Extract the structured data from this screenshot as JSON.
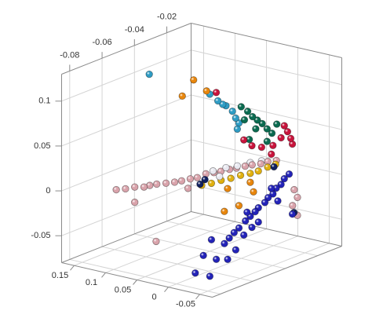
{
  "chart_data": {
    "type": "scatter3d",
    "xlim": [
      -0.085,
      -0.005
    ],
    "ylim": [
      -0.07,
      0.17
    ],
    "zlim": [
      -0.08,
      0.13
    ],
    "xticks": [
      -0.08,
      -0.06,
      -0.04,
      -0.02
    ],
    "yticks": [
      -0.05,
      0,
      0.05,
      0.1,
      0.15
    ],
    "zticks": [
      -0.05,
      0,
      0.05,
      0.1
    ],
    "grid": true,
    "series": [
      {
        "color": "#2323b8",
        "x": [
          -0.022,
          -0.025,
          -0.027,
          -0.03,
          -0.032,
          -0.035,
          -0.037,
          -0.041,
          -0.043,
          -0.046,
          -0.049,
          -0.053,
          -0.056,
          -0.059,
          -0.062,
          -0.055,
          -0.05,
          -0.045,
          -0.041,
          -0.07,
          -0.067,
          -0.06,
          -0.075,
          -0.08,
          -0.071,
          -0.048,
          -0.033,
          -0.029,
          -0.02
        ],
        "y": [
          -0.03,
          -0.03,
          -0.03,
          -0.03,
          -0.03,
          -0.03,
          -0.03,
          -0.03,
          -0.03,
          -0.03,
          -0.03,
          -0.03,
          -0.03,
          -0.03,
          -0.03,
          -0.03,
          -0.03,
          -0.03,
          -0.03,
          -0.03,
          -0.03,
          -0.03,
          -0.03,
          -0.03,
          -0.03,
          -0.03,
          -0.03,
          -0.03,
          -0.03
        ],
        "z": [
          0.006,
          0.003,
          -0.002,
          -0.004,
          -0.009,
          -0.011,
          -0.015,
          -0.018,
          -0.021,
          -0.024,
          -0.027,
          -0.032,
          -0.035,
          -0.039,
          -0.043,
          -0.055,
          -0.042,
          -0.037,
          -0.034,
          -0.033,
          -0.057,
          -0.062,
          -0.047,
          -0.063,
          -0.073,
          -0.018,
          -0.002,
          -0.019,
          -0.04
        ]
      },
      {
        "color": "#d9a3ab",
        "x": [
          -0.059,
          -0.056,
          -0.053,
          -0.05,
          -0.048,
          -0.046,
          -0.043,
          -0.04,
          -0.038,
          -0.035,
          -0.033,
          -0.03,
          -0.027,
          -0.025,
          -0.022,
          -0.02,
          -0.017,
          -0.015,
          -0.012,
          -0.01,
          -0.007,
          -0.015,
          -0.013,
          -0.016,
          -0.013,
          -0.046,
          -0.053,
          -0.036
        ],
        "y": [
          0.15,
          0.143,
          0.136,
          0.129,
          0.125,
          0.119,
          0.112,
          0.106,
          0.1,
          0.094,
          0.088,
          0.082,
          0.077,
          0.071,
          0.065,
          0.059,
          0.053,
          0.047,
          0.041,
          0.035,
          0.029,
          -0.02,
          -0.02,
          -0.02,
          -0.02,
          0.12,
          0.136,
          0.095
        ],
        "z": [
          -0.014,
          -0.014,
          -0.013,
          -0.014,
          -0.013,
          -0.012,
          -0.012,
          -0.012,
          -0.011,
          -0.01,
          -0.009,
          -0.006,
          -0.006,
          -0.005,
          -0.004,
          -0.003,
          -0.002,
          -0.001,
          -0.001,
          0.001,
          0.001,
          -0.018,
          -0.028,
          -0.035,
          -0.048,
          -0.076,
          -0.03,
          -0.02
        ]
      },
      {
        "color": "#e8860c",
        "x": [
          -0.057,
          -0.05,
          -0.042,
          -0.029,
          -0.031,
          -0.013,
          -0.015,
          -0.022
        ],
        "y": [
          0.05,
          0.05,
          0.05,
          0.05,
          0.05,
          0.05,
          0.05,
          0.05
        ],
        "z": [
          0.105,
          0.118,
          0.1,
          -0.018,
          -0.042,
          -0.033,
          -0.021,
          -0.042
        ]
      },
      {
        "color": "#e0b010",
        "x": [
          -0.045,
          -0.039,
          -0.033,
          -0.027,
          -0.021,
          -0.015,
          -0.01,
          -0.012,
          -0.011
        ],
        "y": [
          0.05,
          0.05,
          0.05,
          0.05,
          0.05,
          0.05,
          0.05,
          0.03,
          0.02
        ],
        "z": [
          -0.003,
          -0.005,
          -0.006,
          -0.008,
          -0.009,
          -0.011,
          -0.012,
          -0.003,
          0.001
        ]
      },
      {
        "color": "#2e9cc4",
        "x": [
          -0.058,
          -0.04,
          -0.035,
          -0.03,
          -0.026,
          -0.024,
          -0.022,
          -0.023,
          -0.032
        ],
        "y": [
          0.1,
          0.05,
          0.05,
          0.05,
          0.05,
          0.05,
          0.05,
          0.05,
          0.05
        ],
        "z": [
          0.122,
          0.095,
          0.084,
          0.075,
          0.066,
          0.057,
          0.05,
          0.044,
          0.078
        ]
      },
      {
        "color": "#0a6b50",
        "x": [
          -0.04,
          -0.036,
          -0.033,
          -0.03,
          -0.027,
          -0.024,
          -0.021,
          -0.038,
          -0.031,
          -0.024,
          -0.018,
          -0.035
        ],
        "y": [
          0,
          0,
          0,
          0,
          0,
          0,
          0,
          0,
          0,
          0,
          0,
          0
        ],
        "z": [
          0.089,
          0.081,
          0.073,
          0.067,
          0.061,
          0.053,
          0.046,
          0.073,
          0.058,
          0.039,
          0.054,
          0.049
        ]
      },
      {
        "color": "#c8143c",
        "x": [
          -0.036,
          -0.045,
          -0.039,
          -0.032,
          -0.025,
          -0.023,
          -0.021,
          -0.02,
          -0.027,
          -0.033,
          -0.05
        ],
        "y": [
          0.05,
          -0.03,
          -0.03,
          -0.03,
          -0.03,
          -0.03,
          -0.03,
          -0.03,
          -0.03,
          -0.03,
          -0.03
        ],
        "z": [
          0.094,
          0.054,
          0.048,
          0.045,
          0.062,
          0.054,
          0.045,
          0.038,
          0.05,
          0.036,
          0.064
        ]
      },
      {
        "color": "#e8e8f0",
        "x": [
          -0.038,
          -0.03,
          -0.023,
          -0.015,
          -0.008,
          -0.034
        ],
        "y": [
          0.05,
          0.05,
          0.05,
          0.05,
          0.05,
          0.05
        ],
        "z": [
          0.008,
          0.006,
          0.003,
          0.001,
          -0.002,
          -0.001
        ]
      },
      {
        "color": "#102060",
        "x": [
          -0.046,
          -0.043,
          -0.019,
          -0.012
        ],
        "y": [
          0.05,
          0.05,
          -0.03,
          0.02
        ],
        "z": [
          -0.001,
          0.002,
          -0.039,
          -0.001
        ]
      }
    ]
  }
}
